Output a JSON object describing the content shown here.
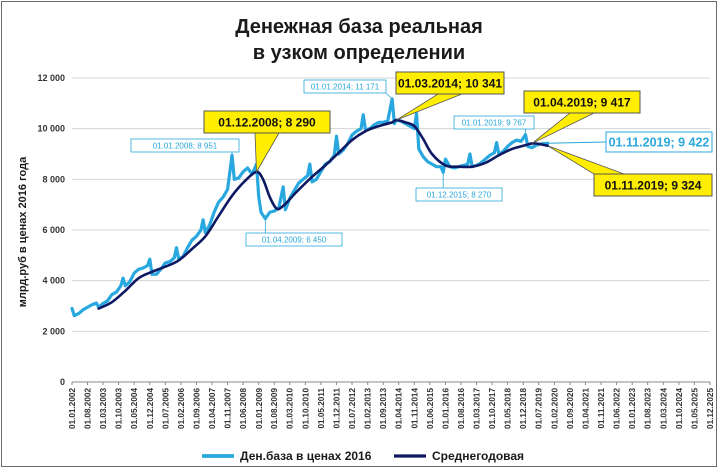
{
  "chart_data": {
    "type": "line",
    "title_lines": [
      "Денежная база реальная",
      "в узком определении"
    ],
    "ylabel": "млрд.руб  в ценах 2016 года",
    "ylim": [
      0,
      12000
    ],
    "y_ticks": [
      "0",
      "2 000",
      "4 000",
      "6 000",
      "8 000",
      "10 000",
      "12 000"
    ],
    "y_tick_values": [
      0,
      2000,
      4000,
      6000,
      8000,
      10000,
      12000
    ],
    "grid": true,
    "legend_position": "bottom",
    "x_ticks": [
      "01.01.2002",
      "01.08.2002",
      "01.03.2003",
      "01.10.2003",
      "01.05.2004",
      "01.12.2004",
      "01.07.2005",
      "01.02.2006",
      "01.09.2006",
      "01.04.2007",
      "01.11.2007",
      "01.06.2008",
      "01.01.2009",
      "01.08.2009",
      "01.03.2010",
      "01.10.2010",
      "01.05.2011",
      "01.12.2011",
      "01.07.2012",
      "01.02.2013",
      "01.09.2013",
      "01.04.2014",
      "01.11.2014",
      "01.06.2015",
      "01.01.2016",
      "01.08.2016",
      "01.03.2017",
      "01.10.2017",
      "01.05.2018",
      "01.12.2018",
      "01.07.2019",
      "01.02.2020",
      "01.09.2020",
      "01.04.2021",
      "01.11.2021",
      "01.06.2022",
      "01.01.2023",
      "01.08.2023",
      "01.03.2024",
      "01.10.2024",
      "01.05.2025",
      "01.12.2025"
    ],
    "series": [
      {
        "name": "Ден.база в ценах 2016",
        "color": "#29a8e0",
        "points": [
          [
            "01.01.2002",
            2900
          ],
          [
            "01.02.2002",
            2620
          ],
          [
            "01.04.2002",
            2700
          ],
          [
            "01.06.2002",
            2850
          ],
          [
            "01.08.2002",
            2950
          ],
          [
            "01.10.2002",
            3050
          ],
          [
            "01.12.2002",
            3120
          ],
          [
            "01.01.2003",
            2950
          ],
          [
            "01.03.2003",
            3100
          ],
          [
            "01.05.2003",
            3200
          ],
          [
            "01.07.2003",
            3450
          ],
          [
            "01.09.2003",
            3550
          ],
          [
            "01.11.2003",
            3800
          ],
          [
            "01.12.2003",
            4100
          ],
          [
            "01.01.2004",
            3800
          ],
          [
            "01.03.2004",
            3950
          ],
          [
            "01.05.2004",
            4300
          ],
          [
            "01.07.2004",
            4450
          ],
          [
            "01.09.2004",
            4500
          ],
          [
            "01.11.2004",
            4600
          ],
          [
            "01.12.2004",
            4850
          ],
          [
            "01.01.2005",
            4250
          ],
          [
            "01.03.2005",
            4250
          ],
          [
            "01.05.2005",
            4450
          ],
          [
            "01.07.2005",
            4700
          ],
          [
            "01.09.2005",
            4750
          ],
          [
            "01.11.2005",
            4900
          ],
          [
            "01.12.2005",
            5300
          ],
          [
            "01.01.2006",
            4850
          ],
          [
            "01.03.2006",
            4950
          ],
          [
            "01.05.2006",
            5300
          ],
          [
            "01.07.2006",
            5600
          ],
          [
            "01.09.2006",
            5750
          ],
          [
            "01.11.2006",
            6000
          ],
          [
            "01.12.2006",
            6400
          ],
          [
            "01.01.2007",
            5900
          ],
          [
            "01.03.2007",
            6200
          ],
          [
            "01.05.2007",
            6700
          ],
          [
            "01.07.2007",
            7100
          ],
          [
            "01.09.2007",
            7300
          ],
          [
            "01.11.2007",
            7600
          ],
          [
            "01.01.2008",
            8951
          ],
          [
            "01.02.2008",
            8000
          ],
          [
            "01.04.2008",
            8050
          ],
          [
            "01.06.2008",
            8300
          ],
          [
            "01.08.2008",
            8450
          ],
          [
            "01.10.2008",
            8200
          ],
          [
            "01.12.2008",
            8600
          ],
          [
            "01.01.2009",
            7300
          ],
          [
            "01.02.2009",
            6700
          ],
          [
            "01.04.2009",
            6450
          ],
          [
            "01.06.2009",
            6700
          ],
          [
            "01.08.2009",
            6750
          ],
          [
            "01.10.2009",
            6850
          ],
          [
            "01.12.2009",
            7700
          ],
          [
            "01.01.2010",
            6800
          ],
          [
            "01.03.2010",
            7250
          ],
          [
            "01.05.2010",
            7550
          ],
          [
            "01.07.2010",
            7850
          ],
          [
            "01.09.2010",
            8000
          ],
          [
            "01.11.2010",
            8150
          ],
          [
            "01.12.2010",
            8600
          ],
          [
            "01.01.2011",
            7900
          ],
          [
            "01.03.2011",
            8000
          ],
          [
            "01.05.2011",
            8300
          ],
          [
            "01.07.2011",
            8600
          ],
          [
            "01.09.2011",
            8700
          ],
          [
            "01.11.2011",
            8950
          ],
          [
            "01.12.2011",
            9700
          ],
          [
            "01.01.2012",
            9000
          ],
          [
            "01.03.2012",
            9150
          ],
          [
            "01.05.2012",
            9400
          ],
          [
            "01.07.2012",
            9750
          ],
          [
            "01.09.2012",
            9900
          ],
          [
            "01.11.2012",
            10000
          ],
          [
            "01.12.2012",
            10550
          ],
          [
            "01.01.2013",
            9950
          ],
          [
            "01.03.2013",
            10000
          ],
          [
            "01.05.2013",
            10150
          ],
          [
            "01.07.2013",
            10250
          ],
          [
            "01.09.2013",
            10250
          ],
          [
            "01.11.2013",
            10300
          ],
          [
            "01.01.2014",
            11171
          ],
          [
            "01.02.2014",
            10200
          ],
          [
            "01.03.2014",
            10341
          ],
          [
            "01.05.2014",
            10300
          ],
          [
            "01.07.2014",
            10200
          ],
          [
            "01.09.2014",
            10100
          ],
          [
            "01.11.2014",
            10000
          ],
          [
            "01.12.2014",
            10600
          ],
          [
            "01.01.2015",
            9200
          ],
          [
            "01.03.2015",
            8900
          ],
          [
            "01.05.2015",
            8700
          ],
          [
            "01.07.2015",
            8600
          ],
          [
            "01.09.2015",
            8500
          ],
          [
            "01.11.2015",
            8500
          ],
          [
            "01.12.2015",
            8270
          ],
          [
            "01.01.2016",
            8800
          ],
          [
            "01.03.2016",
            8500
          ],
          [
            "01.05.2016",
            8450
          ],
          [
            "01.07.2016",
            8500
          ],
          [
            "01.09.2016",
            8550
          ],
          [
            "01.11.2016",
            8600
          ],
          [
            "01.12.2016",
            9000
          ],
          [
            "01.01.2017",
            8500
          ],
          [
            "01.03.2017",
            8550
          ],
          [
            "01.05.2017",
            8650
          ],
          [
            "01.07.2017",
            8800
          ],
          [
            "01.09.2017",
            8950
          ],
          [
            "01.11.2017",
            9050
          ],
          [
            "01.12.2017",
            9450
          ],
          [
            "01.01.2018",
            9000
          ],
          [
            "01.03.2018",
            9100
          ],
          [
            "01.05.2018",
            9300
          ],
          [
            "01.07.2018",
            9450
          ],
          [
            "01.09.2018",
            9550
          ],
          [
            "01.11.2018",
            9500
          ],
          [
            "01.01.2019",
            9767
          ],
          [
            "01.02.2019",
            9300
          ],
          [
            "01.04.2019",
            9250
          ],
          [
            "01.06.2019",
            9350
          ],
          [
            "01.08.2019",
            9400
          ],
          [
            "01.11.2019",
            9422
          ]
        ]
      },
      {
        "name": "Среднегодовая",
        "color": "#0d1a63",
        "points": [
          [
            "01.01.2003",
            2900
          ],
          [
            "01.07.2003",
            3150
          ],
          [
            "01.01.2004",
            3600
          ],
          [
            "01.07.2004",
            4100
          ],
          [
            "01.01.2005",
            4350
          ],
          [
            "01.07.2005",
            4550
          ],
          [
            "01.01.2006",
            4800
          ],
          [
            "01.07.2006",
            5250
          ],
          [
            "01.01.2007",
            5750
          ],
          [
            "01.07.2007",
            6550
          ],
          [
            "01.01.2008",
            7350
          ],
          [
            "01.07.2008",
            7950
          ],
          [
            "01.12.2008",
            8290
          ],
          [
            "01.03.2009",
            8000
          ],
          [
            "01.06.2009",
            7300
          ],
          [
            "01.09.2009",
            6850
          ],
          [
            "01.12.2009",
            6950
          ],
          [
            "01.06.2010",
            7500
          ],
          [
            "01.01.2011",
            8100
          ],
          [
            "01.07.2011",
            8550
          ],
          [
            "01.01.2012",
            9050
          ],
          [
            "01.07.2012",
            9550
          ],
          [
            "01.01.2013",
            9900
          ],
          [
            "01.07.2013",
            10100
          ],
          [
            "01.01.2014",
            10250
          ],
          [
            "01.03.2014",
            10341
          ],
          [
            "01.07.2014",
            10250
          ],
          [
            "01.11.2014",
            10100
          ],
          [
            "01.03.2015",
            9600
          ],
          [
            "01.07.2015",
            9000
          ],
          [
            "01.01.2016",
            8550
          ],
          [
            "01.07.2016",
            8500
          ],
          [
            "01.01.2017",
            8500
          ],
          [
            "01.07.2017",
            8650
          ],
          [
            "01.01.2018",
            8950
          ],
          [
            "01.07.2018",
            9200
          ],
          [
            "01.01.2019",
            9350
          ],
          [
            "01.04.2019",
            9417
          ],
          [
            "01.07.2019",
            9400
          ],
          [
            "01.11.2019",
            9324
          ]
        ]
      }
    ],
    "annotations": [
      {
        "text": "01.01.2008; 8 951",
        "style": "small"
      },
      {
        "text": "01.12.2008;  8 290",
        "style": "yellow"
      },
      {
        "text": "01.04.2009; 6 450",
        "style": "small"
      },
      {
        "text": "01.01.2014; 11 171",
        "style": "small"
      },
      {
        "text": "01.03.2014;  10 341",
        "style": "yellow"
      },
      {
        "text": "01.12.2015; 8 270",
        "style": "small"
      },
      {
        "text": "01.01.2019; 9 767",
        "style": "small"
      },
      {
        "text": "01.04.2019;  9 417",
        "style": "yellow"
      },
      {
        "text": "01.11.2019; 9 422",
        "style": "cyan-box"
      },
      {
        "text": "01.11.2019;  9 324",
        "style": "yellow"
      }
    ]
  }
}
